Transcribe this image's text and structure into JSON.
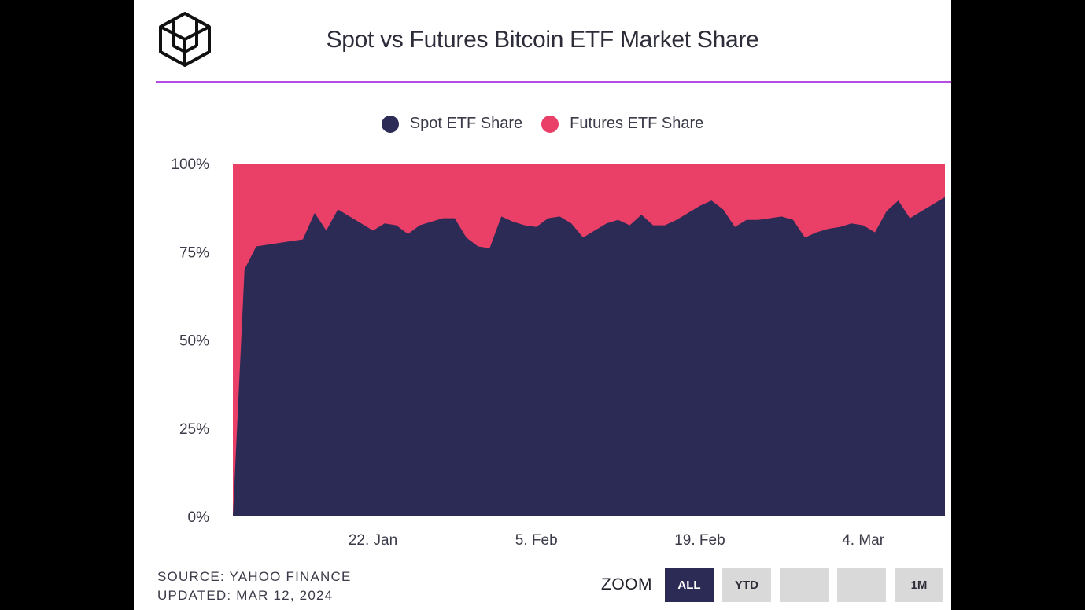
{
  "header": {
    "title": "Spot vs Futures Bitcoin ETF Market Share"
  },
  "colors": {
    "spot": "#2c2b56",
    "futures": "#ea3f67",
    "accent": "#b44de3"
  },
  "chart_data": {
    "type": "area",
    "stacked": "percent",
    "title": "Spot vs Futures Bitcoin ETF Market Share",
    "legend": [
      "Spot ETF Share",
      "Futures ETF Share"
    ],
    "legend_position": "top-center",
    "y_ticks": [
      "0%",
      "25%",
      "50%",
      "75%",
      "100%"
    ],
    "ylim": [
      0,
      100
    ],
    "x_ticks": [
      {
        "label": "22. Jan",
        "day": 12
      },
      {
        "label": "5. Feb",
        "day": 26
      },
      {
        "label": "19. Feb",
        "day": 40
      },
      {
        "label": "4. Mar",
        "day": 54
      }
    ],
    "xlim": [
      0,
      61
    ],
    "x_unit": "days since Jan 10, 2024",
    "series": [
      {
        "name": "Spot ETF Share",
        "points": [
          [
            0,
            0
          ],
          [
            1,
            70
          ],
          [
            2,
            76.5
          ],
          [
            3,
            77
          ],
          [
            4,
            77.5
          ],
          [
            5,
            78
          ],
          [
            6,
            78.5
          ],
          [
            7,
            86
          ],
          [
            8,
            81
          ],
          [
            9,
            87
          ],
          [
            10,
            85
          ],
          [
            11,
            83
          ],
          [
            12,
            81
          ],
          [
            13,
            83
          ],
          [
            14,
            82.5
          ],
          [
            15,
            80
          ],
          [
            16,
            82.5
          ],
          [
            17,
            83.5
          ],
          [
            18,
            84.5
          ],
          [
            19,
            84.5
          ],
          [
            20,
            79
          ],
          [
            21,
            76.5
          ],
          [
            22,
            76
          ],
          [
            23,
            85
          ],
          [
            24,
            83.5
          ],
          [
            25,
            82.5
          ],
          [
            26,
            82
          ],
          [
            27,
            84.5
          ],
          [
            28,
            85
          ],
          [
            29,
            83
          ],
          [
            30,
            79
          ],
          [
            31,
            81
          ],
          [
            32,
            83
          ],
          [
            33,
            84
          ],
          [
            34,
            82.5
          ],
          [
            35,
            85.5
          ],
          [
            36,
            82.5
          ],
          [
            37,
            82.5
          ],
          [
            38,
            84
          ],
          [
            39,
            86
          ],
          [
            40,
            88
          ],
          [
            41,
            89.5
          ],
          [
            42,
            87
          ],
          [
            43,
            82
          ],
          [
            44,
            84
          ],
          [
            45,
            84
          ],
          [
            46,
            84.5
          ],
          [
            47,
            85
          ],
          [
            48,
            84
          ],
          [
            49,
            79
          ],
          [
            50,
            80.5
          ],
          [
            51,
            81.5
          ],
          [
            52,
            82
          ],
          [
            53,
            83
          ],
          [
            54,
            82.5
          ],
          [
            55,
            80.5
          ],
          [
            56,
            86.5
          ],
          [
            57,
            89.5
          ],
          [
            58,
            84.5
          ],
          [
            59,
            86.5
          ],
          [
            60,
            88.5
          ],
          [
            61,
            90.5
          ]
        ]
      },
      {
        "name": "Futures ETF Share",
        "note": "remainder to 100%"
      }
    ]
  },
  "footer": {
    "source": "SOURCE: YAHOO FINANCE",
    "updated": "UPDATED: MAR 12, 2024"
  },
  "zoom": {
    "label": "ZOOM",
    "buttons": [
      {
        "label": "ALL",
        "active": true
      },
      {
        "label": "YTD",
        "active": false
      },
      {
        "label": "",
        "active": false
      },
      {
        "label": "",
        "active": false
      },
      {
        "label": "1M",
        "active": false
      }
    ]
  }
}
